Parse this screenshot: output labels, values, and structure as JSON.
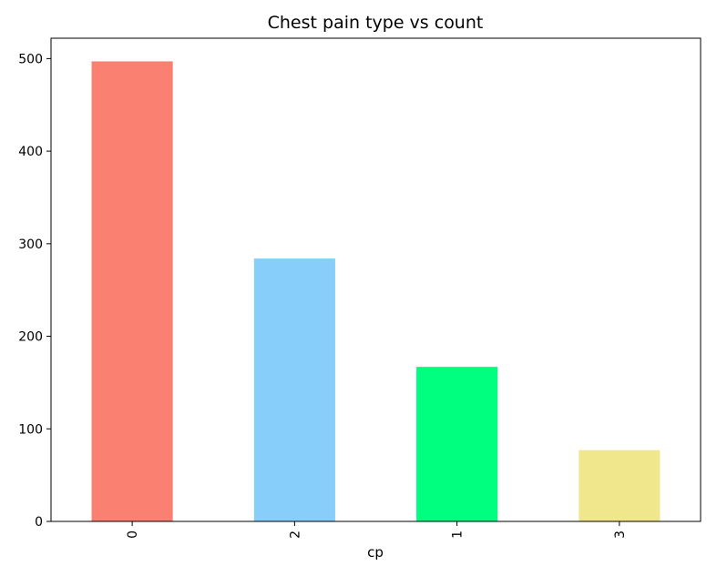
{
  "chart_data": {
    "type": "bar",
    "title": "Chest pain type vs count",
    "xlabel": "cp",
    "ylabel": "",
    "categories": [
      "0",
      "2",
      "1",
      "3"
    ],
    "values": [
      497,
      284,
      167,
      77
    ],
    "colors": [
      "#fa8072",
      "#87cefa",
      "#00ff7f",
      "#f0e68c"
    ],
    "ylim": [
      0,
      522
    ],
    "yticks": [
      0,
      100,
      200,
      300,
      400,
      500
    ],
    "xtick_rotation": "vertical",
    "grid": false,
    "legend": "none"
  }
}
